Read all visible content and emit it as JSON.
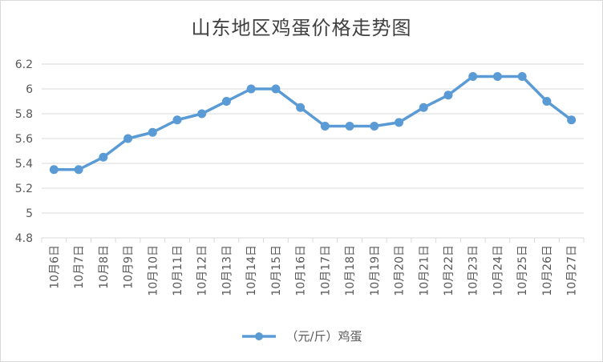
{
  "chart_data": {
    "type": "line",
    "title": "山东地区鸡蛋价格走势图",
    "categories": [
      "10月6日",
      "10月7日",
      "10月8日",
      "10月9日",
      "10月10日",
      "10月11日",
      "10月12日",
      "10月13日",
      "10月14日",
      "10月15日",
      "10月16日",
      "10月17日",
      "10月18日",
      "10月19日",
      "10月20日",
      "10月21日",
      "10月22日",
      "10月23日",
      "10月24日",
      "10月25日",
      "10月26日",
      "10月27日"
    ],
    "series": [
      {
        "name": "（元/斤）鸡蛋",
        "values": [
          5.35,
          5.35,
          5.45,
          5.6,
          5.65,
          5.75,
          5.8,
          5.9,
          6.0,
          6.0,
          5.85,
          5.7,
          5.7,
          5.7,
          5.73,
          5.85,
          5.95,
          6.1,
          6.1,
          6.1,
          5.9,
          5.75
        ]
      }
    ],
    "ylim": [
      4.8,
      6.2
    ],
    "yticks": [
      "4.8",
      "5",
      "5.2",
      "5.4",
      "5.6",
      "5.8",
      "6",
      "6.2"
    ],
    "xlabel": "",
    "ylabel": "",
    "grid": true,
    "legend_position": "bottom",
    "colors": {
      "line": "#5b9bd5",
      "grid": "#d9d9d9",
      "text": "#595959"
    }
  }
}
